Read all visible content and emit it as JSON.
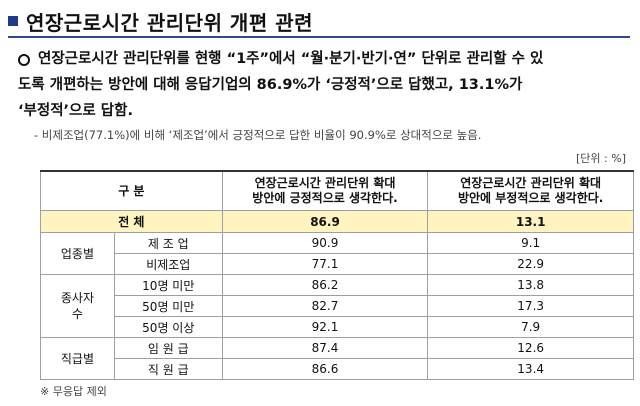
{
  "heading": "연장근로시간 관리단위 개편 관련",
  "bullet": {
    "line1": "연장근로시간 관리단위를 현행 “1주”에서 “월·분기·반기·연” 단위로 관리할 수 있",
    "line2": "도록 개편하는 방안에 대해 응답기업의 86.9%가 ‘긍정적’으로 답했고, 13.1%가",
    "line3": "‘부정적’으로 답함."
  },
  "sub_note": "- 비제조업(77.1%)에 비해 ‘제조업’에서 긍정적으로 답한 비율이 90.9%로 상대적으로 높음.",
  "unit": "[단위 : %]",
  "table": {
    "head_category": "구  분",
    "head_positive": "연장근로시간 관리단위 확대\n방안에 긍정적으로 생각한다.",
    "head_negative": "연장근로시간 관리단위 확대\n방안에 부정적으로 생각한다.",
    "total": {
      "label": "전  체",
      "positive": "86.9",
      "negative": "13.1"
    },
    "groups": [
      {
        "name": "업종별",
        "rows": [
          {
            "label": "제 조 업",
            "positive": "90.9",
            "negative": "9.1"
          },
          {
            "label": "비제조업",
            "positive": "77.1",
            "negative": "22.9"
          }
        ]
      },
      {
        "name": "종사자\n수",
        "rows": [
          {
            "label": "10명 미만",
            "positive": "86.2",
            "negative": "13.8"
          },
          {
            "label": "50명 미만",
            "positive": "82.7",
            "negative": "17.3"
          },
          {
            "label": "50명 이상",
            "positive": "92.1",
            "negative": "7.9"
          }
        ]
      },
      {
        "name": "직급별",
        "rows": [
          {
            "label": "임 원 급",
            "positive": "87.4",
            "negative": "12.6"
          },
          {
            "label": "직 원 급",
            "positive": "86.6",
            "negative": "13.4"
          }
        ]
      }
    ]
  },
  "footnote": "※ 무응답 제외"
}
